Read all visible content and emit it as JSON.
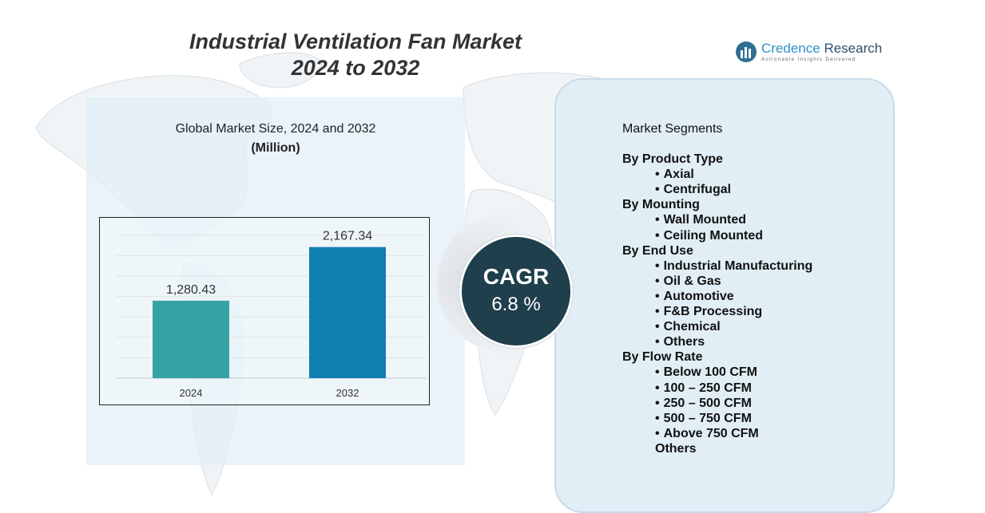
{
  "title": {
    "line1": "Industrial Ventilation Fan Market",
    "line2": "2024 to 2032"
  },
  "logo": {
    "name_part1": "Credence",
    "name_part2": "Research",
    "tagline": "Actionable Insights Delivered"
  },
  "chart_heading": {
    "line1": "Global Market Size, 2024 and 2032",
    "unit": "(Million)"
  },
  "chart_data": {
    "type": "bar",
    "categories": [
      "2024",
      "2032"
    ],
    "values": [
      1280.43,
      2167.34
    ],
    "value_labels": [
      "1,280.43",
      "2,167.34"
    ],
    "colors": [
      "#35a3a3",
      "#0f7fb0"
    ],
    "title": "Global Market Size, 2024 and 2032",
    "ylabel": "(Million)",
    "ylim": [
      0,
      2400
    ],
    "grid": true,
    "legend": "none"
  },
  "cagr": {
    "label": "CAGR",
    "value": "6.8 %"
  },
  "segments": {
    "title": "Market Segments",
    "groups": [
      {
        "name": "By Product Type",
        "items": [
          "Axial",
          "Centrifugal"
        ]
      },
      {
        "name": "By Mounting",
        "items": [
          "Wall Mounted",
          "Ceiling Mounted"
        ]
      },
      {
        "name": "By End Use",
        "items": [
          "Industrial Manufacturing",
          "Oil & Gas",
          "Automotive",
          "F&B Processing",
          "Chemical",
          "Others"
        ]
      },
      {
        "name": "By Flow Rate",
        "items": [
          "Below 100 CFM",
          "100 – 250 CFM",
          "250 – 500 CFM",
          "500 – 750 CFM",
          "Above 750 CFM"
        ]
      }
    ],
    "trailing": "Others"
  },
  "colors": {
    "panel_bg": "#e1eef6",
    "cagr_circle": "#1f3f4c",
    "bar_2024": "#35a3a3",
    "bar_2032": "#0f7fb0"
  }
}
